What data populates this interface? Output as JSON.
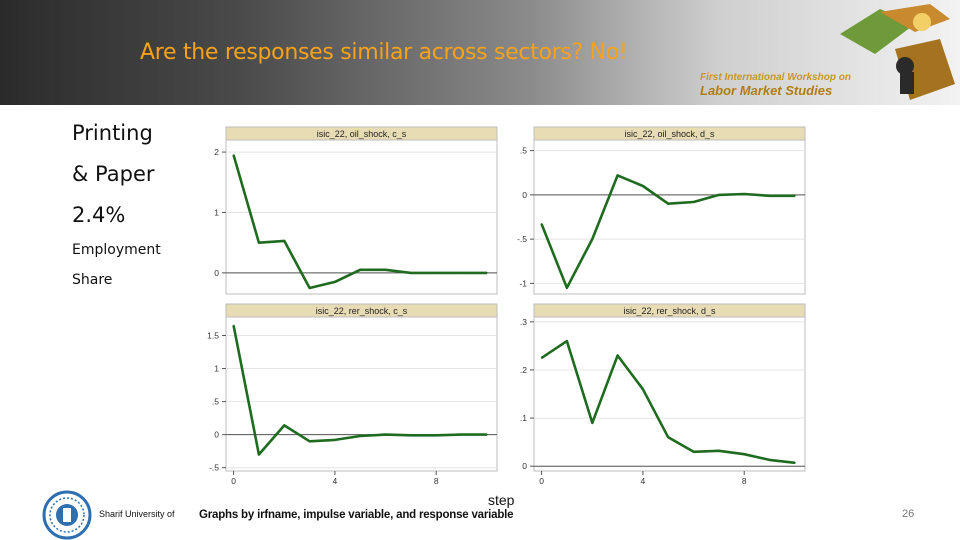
{
  "slide": {
    "title": "Are the responses similar across sectors? No!",
    "workshop_line1": "First International Workshop on",
    "workshop_line2": "Labor Market Studies",
    "side_labels": [
      "Printing",
      "& Paper",
      "2.4%",
      "Employment",
      "Share"
    ],
    "university": "Sharif University of",
    "page_number": "26",
    "step_label": "step",
    "graph_note": "Graphs by irfname, impulse variable, and response variable"
  },
  "colors": {
    "title": "#f7a21b",
    "line": "#1f6b1f",
    "panel_header": "#e8dcb5"
  },
  "chart_data": [
    {
      "type": "line",
      "title": "isic_22, oil_shock, c_s",
      "x": [
        0,
        1,
        2,
        3,
        4,
        5,
        6,
        7,
        8,
        9,
        10
      ],
      "series": [
        {
          "values": [
            1.95,
            0.5,
            0.53,
            -0.25,
            -0.15,
            0.05,
            0.05,
            0.0,
            0.0,
            0.0,
            0.0
          ]
        }
      ],
      "yticks": [
        0,
        1,
        2
      ],
      "ytick_labels": [
        "0",
        "1",
        "2"
      ],
      "ylim": [
        -0.35,
        2.2
      ],
      "grid": true
    },
    {
      "type": "line",
      "title": "isic_22, oil_shock, d_s",
      "x": [
        0,
        1,
        2,
        3,
        4,
        5,
        6,
        7,
        8,
        9,
        10
      ],
      "series": [
        {
          "values": [
            -0.33,
            -1.05,
            -0.5,
            0.22,
            0.1,
            -0.1,
            -0.08,
            0.0,
            0.01,
            -0.01,
            -0.01
          ]
        }
      ],
      "yticks": [
        -1,
        -0.5,
        0,
        0.5
      ],
      "ytick_labels": [
        "-1",
        "-.5",
        "0",
        ".5"
      ],
      "ylim": [
        -1.12,
        0.62
      ],
      "grid": true
    },
    {
      "type": "line",
      "title": "isic_22, rer_shock, c_s",
      "x": [
        0,
        1,
        2,
        3,
        4,
        5,
        6,
        7,
        8,
        9,
        10
      ],
      "series": [
        {
          "values": [
            1.65,
            -0.3,
            0.14,
            -0.1,
            -0.08,
            -0.02,
            0.0,
            -0.01,
            -0.01,
            0.0,
            0.0
          ]
        }
      ],
      "yticks": [
        -0.5,
        0,
        0.5,
        1,
        1.5
      ],
      "ytick_labels": [
        "-.5",
        "0",
        ".5",
        "1",
        "1.5"
      ],
      "ylim": [
        -0.55,
        1.78
      ],
      "grid": true
    },
    {
      "type": "line",
      "title": "isic_22, rer_shock, d_s",
      "x": [
        0,
        1,
        2,
        3,
        4,
        5,
        6,
        7,
        8,
        9,
        10
      ],
      "series": [
        {
          "values": [
            0.225,
            0.26,
            0.09,
            0.23,
            0.16,
            0.06,
            0.03,
            0.032,
            0.025,
            0.013,
            0.007
          ]
        }
      ],
      "yticks": [
        0,
        0.1,
        0.2,
        0.3
      ],
      "ytick_labels": [
        "0",
        ".1",
        ".2",
        ".3"
      ],
      "ylim": [
        -0.01,
        0.31
      ],
      "grid": true
    }
  ],
  "shared_x_axis": {
    "ticks": [
      0,
      4,
      8
    ],
    "tick_labels": [
      "0",
      "4",
      "8"
    ],
    "xlim": [
      -0.3,
      10.4
    ]
  }
}
